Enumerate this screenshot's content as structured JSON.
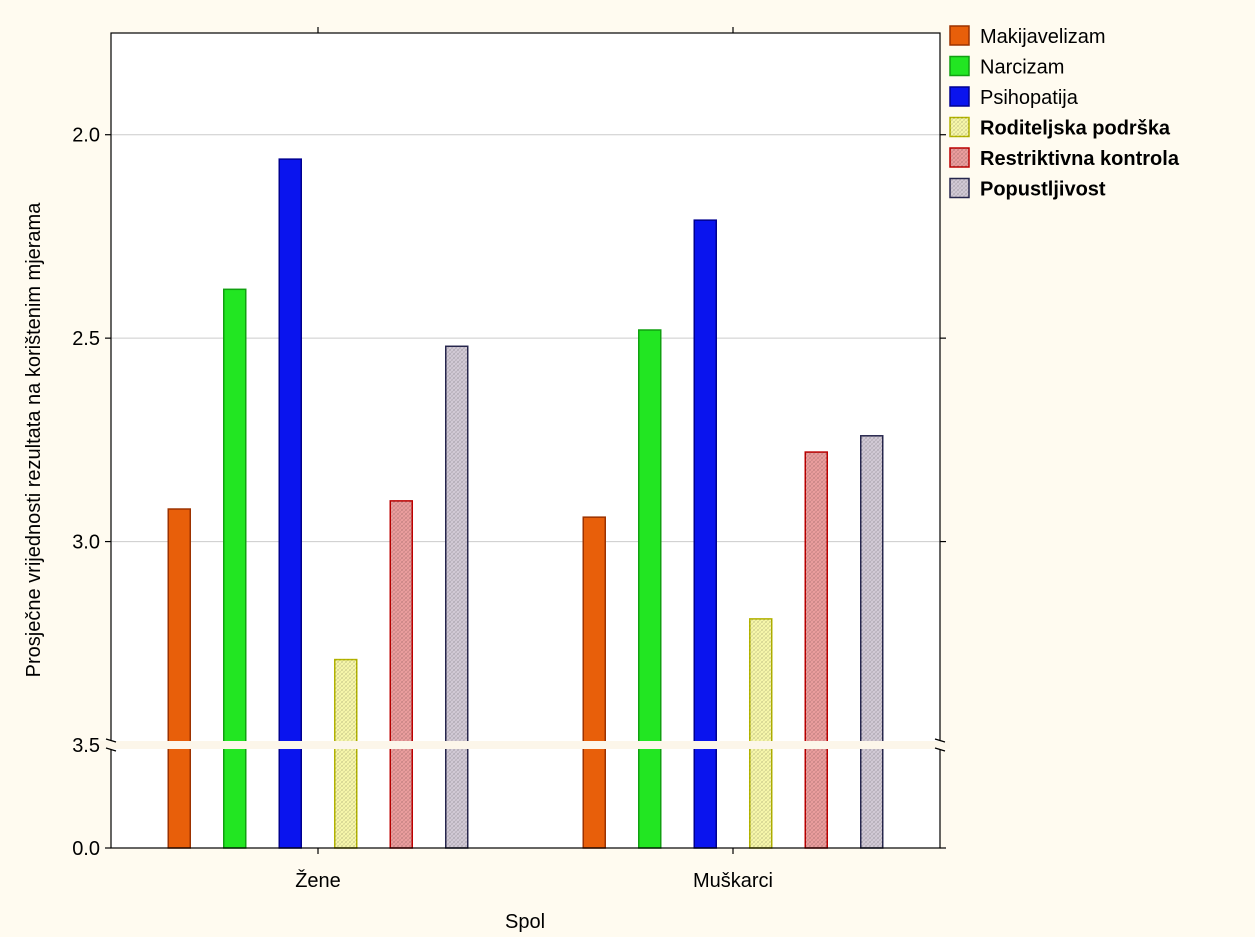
{
  "chart_data": {
    "type": "bar",
    "title": "",
    "xlabel": "Spol",
    "ylabel": "Prosječne vrijednosti rezultata na korištenim mjerama",
    "categories": [
      "Žene",
      "Muškarci"
    ],
    "axis_break": {
      "lower": [
        0.0,
        1.75
      ],
      "upper": [
        1.75,
        3.5
      ]
    },
    "ylim": [
      0.0,
      3.5
    ],
    "yticks": [
      "0.0",
      "2.0",
      "2.5",
      "3.0",
      "3.5"
    ],
    "grid": true,
    "legend_placement": "right",
    "series": [
      {
        "name": "Makijavelizam",
        "values": [
          2.92,
          2.94
        ],
        "color": "#e85f0a",
        "bold": false,
        "hatched": false
      },
      {
        "name": "Narcizam",
        "values": [
          2.38,
          2.48
        ],
        "color": "#22e622",
        "bold": false,
        "hatched": false
      },
      {
        "name": "Psihopatija",
        "values": [
          2.06,
          2.21
        ],
        "color": "#0a14ee",
        "bold": false,
        "hatched": false
      },
      {
        "name": "Roditeljska podrška",
        "values": [
          3.29,
          3.19
        ],
        "color": "#ffffb0",
        "bold": true,
        "hatched": true
      },
      {
        "name": "Restriktivna kontrola",
        "values": [
          2.9,
          2.78
        ],
        "color": "#f2a2a2",
        "bold": true,
        "hatched": true
      },
      {
        "name": "Popustljivost",
        "values": [
          2.52,
          2.74
        ],
        "color": "#d8d0dc",
        "bold": true,
        "hatched": true
      }
    ],
    "colors": {
      "background": "#fffbf0",
      "plot_background": "#ffffff",
      "gridline": "#cccccc",
      "break_band": "#fcf6ea",
      "outline_Makijavelizam": "#9c3200",
      "outline_Narcizam": "#10a010",
      "outline_Psihopatija": "#000090",
      "outline_Roditeljska podrška": "#b6b600",
      "outline_Restriktivna kontrola": "#c00000",
      "outline_Popustljivost": "#282850"
    }
  }
}
